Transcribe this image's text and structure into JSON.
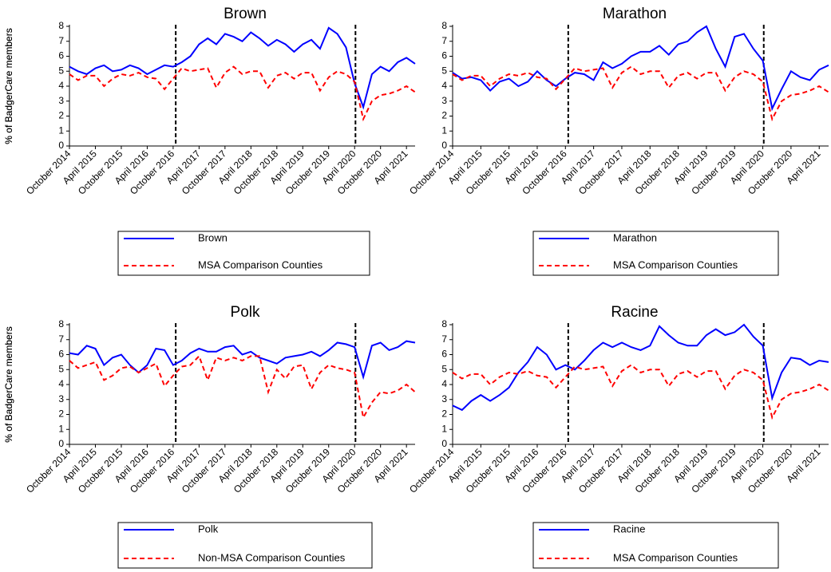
{
  "chart_data": [
    {
      "type": "line",
      "title": "Brown",
      "ylabel": "% of BadgerCare members",
      "categories": [
        "October 2014",
        null,
        null,
        "April 2015",
        null,
        null,
        "October 2015",
        null,
        null,
        "April 2016",
        null,
        null,
        "October 2016",
        null,
        null,
        "April 2017",
        null,
        null,
        "October 2017",
        null,
        null,
        "April 2018",
        null,
        null,
        "October 2018",
        null,
        null,
        "April 2019",
        null,
        null,
        "October 2019",
        null,
        null,
        "April 2020",
        null,
        null,
        "October 2020",
        null,
        null,
        "April 2021",
        null
      ],
      "ylim": [
        0,
        8
      ],
      "yticks": [
        0,
        1,
        2,
        3,
        4,
        5,
        6,
        7,
        8
      ],
      "series": [
        {
          "name": "Brown",
          "color": "#0000ff",
          "style": "solid",
          "values": [
            5.3,
            5.0,
            4.8,
            5.2,
            5.4,
            5.0,
            5.1,
            5.4,
            5.2,
            4.8,
            5.1,
            5.4,
            5.3,
            5.6,
            6.0,
            6.8,
            7.2,
            6.8,
            7.5,
            7.3,
            7.0,
            7.6,
            7.2,
            6.7,
            7.1,
            6.8,
            6.3,
            6.8,
            7.1,
            6.5,
            7.9,
            7.5,
            6.6,
            4.2,
            2.6,
            4.8,
            5.3,
            5.0,
            5.6,
            5.9,
            5.5
          ]
        },
        {
          "name": "MSA Comparison Counties",
          "color": "#ff0000",
          "style": "dashed",
          "values": [
            4.8,
            4.4,
            4.7,
            4.7,
            4.0,
            4.5,
            4.8,
            4.7,
            4.9,
            4.6,
            4.5,
            3.8,
            4.5,
            5.2,
            5.0,
            5.1,
            5.2,
            3.9,
            4.9,
            5.3,
            4.8,
            5.0,
            5.0,
            3.9,
            4.7,
            4.9,
            4.5,
            4.9,
            4.9,
            3.7,
            4.6,
            5.0,
            4.8,
            4.3,
            1.8,
            3.0,
            3.4,
            3.5,
            3.7,
            4.0,
            3.6
          ]
        }
      ]
    },
    {
      "type": "line",
      "title": "Marathon",
      "ylabel": "% of BadgerCare members",
      "categories": [
        "October 2014",
        null,
        null,
        "April 2015",
        null,
        null,
        "October 2015",
        null,
        null,
        "April 2016",
        null,
        null,
        "October 2016",
        null,
        null,
        "April 2017",
        null,
        null,
        "October 2017",
        null,
        null,
        "April 2018",
        null,
        null,
        "October 2018",
        null,
        null,
        "April 2019",
        null,
        null,
        "October 2019",
        null,
        null,
        "April 2020",
        null,
        null,
        "October 2020",
        null,
        null,
        "April 2021",
        null
      ],
      "ylim": [
        0,
        8
      ],
      "yticks": [
        0,
        1,
        2,
        3,
        4,
        5,
        6,
        7,
        8
      ],
      "series": [
        {
          "name": "Marathon",
          "color": "#0000ff",
          "style": "solid",
          "values": [
            4.9,
            4.5,
            4.6,
            4.4,
            3.7,
            4.3,
            4.5,
            4.0,
            4.3,
            5.0,
            4.4,
            4.0,
            4.5,
            4.9,
            4.8,
            4.4,
            5.6,
            5.2,
            5.5,
            6.0,
            6.3,
            6.3,
            6.7,
            6.1,
            6.8,
            7.0,
            7.6,
            8.0,
            6.5,
            5.3,
            7.3,
            7.5,
            6.5,
            5.7,
            2.5,
            3.8,
            5.0,
            4.6,
            4.4,
            5.1,
            5.4
          ]
        },
        {
          "name": "MSA Comparison Counties",
          "color": "#ff0000",
          "style": "dashed",
          "values": [
            4.8,
            4.4,
            4.7,
            4.7,
            4.0,
            4.5,
            4.8,
            4.7,
            4.9,
            4.6,
            4.5,
            3.8,
            4.5,
            5.2,
            5.0,
            5.1,
            5.2,
            3.9,
            4.9,
            5.3,
            4.8,
            5.0,
            5.0,
            3.9,
            4.7,
            4.9,
            4.5,
            4.9,
            4.9,
            3.7,
            4.6,
            5.0,
            4.8,
            4.3,
            1.8,
            3.0,
            3.4,
            3.5,
            3.7,
            4.0,
            3.6
          ]
        }
      ]
    },
    {
      "type": "line",
      "title": "Polk",
      "ylabel": "% of BadgerCare members",
      "categories": [
        "October 2014",
        null,
        null,
        "April 2015",
        null,
        null,
        "October 2015",
        null,
        null,
        "April 2016",
        null,
        null,
        "October 2016",
        null,
        null,
        "April 2017",
        null,
        null,
        "October 2017",
        null,
        null,
        "April 2018",
        null,
        null,
        "October 2018",
        null,
        null,
        "April 2019",
        null,
        null,
        "October 2019",
        null,
        null,
        "April 2020",
        null,
        null,
        "October 2020",
        null,
        null,
        "April 2021",
        null
      ],
      "ylim": [
        0,
        8
      ],
      "yticks": [
        0,
        1,
        2,
        3,
        4,
        5,
        6,
        7,
        8
      ],
      "series": [
        {
          "name": "Polk",
          "color": "#0000ff",
          "style": "solid",
          "values": [
            6.1,
            6.0,
            6.6,
            6.4,
            5.3,
            5.8,
            6.0,
            5.3,
            4.8,
            5.3,
            6.4,
            6.3,
            5.3,
            5.6,
            6.1,
            6.4,
            6.2,
            6.2,
            6.5,
            6.6,
            6.0,
            6.2,
            5.8,
            5.6,
            5.4,
            5.8,
            5.9,
            6.0,
            6.2,
            5.9,
            6.3,
            6.8,
            6.7,
            6.5,
            4.5,
            6.6,
            6.8,
            6.3,
            6.5,
            6.9,
            6.8
          ]
        },
        {
          "name": "Non-MSA Comparison Counties",
          "color": "#ff0000",
          "style": "dashed",
          "values": [
            5.6,
            5.1,
            5.3,
            5.5,
            4.3,
            4.6,
            5.1,
            5.2,
            4.8,
            5.1,
            5.4,
            3.9,
            4.6,
            5.2,
            5.3,
            5.9,
            4.3,
            5.8,
            5.6,
            5.8,
            5.6,
            5.9,
            5.9,
            3.5,
            5.0,
            4.4,
            5.2,
            5.3,
            3.7,
            4.8,
            5.3,
            5.1,
            5.0,
            4.8,
            1.8,
            2.8,
            3.5,
            3.4,
            3.6,
            4.0,
            3.5
          ]
        }
      ]
    },
    {
      "type": "line",
      "title": "Racine",
      "ylabel": "% of BadgerCare members",
      "categories": [
        "October 2014",
        null,
        null,
        "April 2015",
        null,
        null,
        "October 2015",
        null,
        null,
        "April 2016",
        null,
        null,
        "October 2016",
        null,
        null,
        "April 2017",
        null,
        null,
        "October 2017",
        null,
        null,
        "April 2018",
        null,
        null,
        "October 2018",
        null,
        null,
        "April 2019",
        null,
        null,
        "October 2019",
        null,
        null,
        "April 2020",
        null,
        null,
        "October 2020",
        null,
        null,
        "April 2021",
        null
      ],
      "ylim": [
        0,
        8
      ],
      "yticks": [
        0,
        1,
        2,
        3,
        4,
        5,
        6,
        7,
        8
      ],
      "series": [
        {
          "name": "Racine",
          "color": "#0000ff",
          "style": "solid",
          "values": [
            2.6,
            2.3,
            2.9,
            3.3,
            2.9,
            3.3,
            3.8,
            4.8,
            5.5,
            6.5,
            6.0,
            5.0,
            5.3,
            5.0,
            5.6,
            6.3,
            6.8,
            6.5,
            6.8,
            6.5,
            6.3,
            6.6,
            7.9,
            7.3,
            6.8,
            6.6,
            6.6,
            7.3,
            7.7,
            7.3,
            7.5,
            8.0,
            7.2,
            6.6,
            3.1,
            4.8,
            5.8,
            5.7,
            5.3,
            5.6,
            5.5
          ]
        },
        {
          "name": "MSA Comparison Counties",
          "color": "#ff0000",
          "style": "dashed",
          "values": [
            4.8,
            4.4,
            4.7,
            4.7,
            4.0,
            4.5,
            4.8,
            4.7,
            4.9,
            4.6,
            4.5,
            3.8,
            4.5,
            5.2,
            5.0,
            5.1,
            5.2,
            3.9,
            4.9,
            5.3,
            4.8,
            5.0,
            5.0,
            3.9,
            4.7,
            4.9,
            4.5,
            4.9,
            4.9,
            3.7,
            4.6,
            5.0,
            4.8,
            4.3,
            1.8,
            3.0,
            3.4,
            3.5,
            3.7,
            4.0,
            3.6
          ]
        }
      ]
    }
  ]
}
